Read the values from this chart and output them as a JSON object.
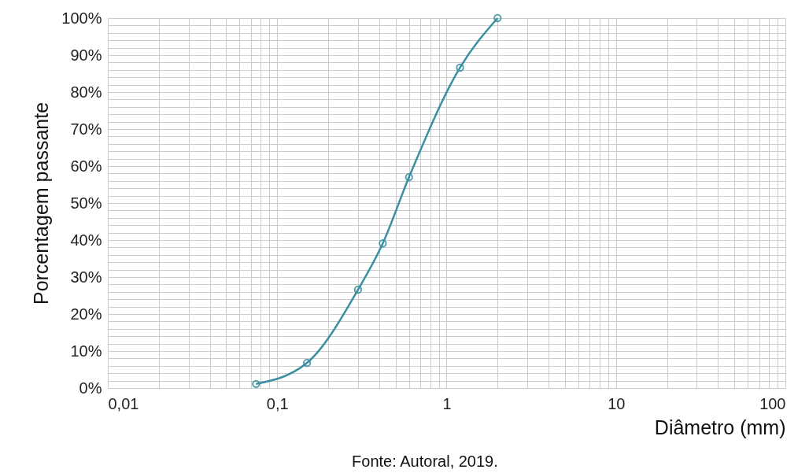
{
  "chart_data": {
    "type": "line",
    "xlabel": "Diâmetro (mm)",
    "ylabel": "Porcentagem passante",
    "x": [
      0.075,
      0.15,
      0.3,
      0.42,
      0.6,
      1.2,
      2.0
    ],
    "series": [
      {
        "color": "#3a8fa0",
        "values": [
          1.1,
          6.8,
          26.6,
          39.1,
          57,
          86.6,
          100
        ]
      }
    ],
    "log": "x",
    "xlim": [
      0.01,
      100
    ],
    "xticks": [
      {
        "value": 0.01,
        "label": "0,01"
      },
      {
        "value": 0.1,
        "label": "0,1"
      },
      1,
      10,
      100
    ],
    "ylim": [
      0,
      100
    ],
    "yticks": [
      {
        "value": 0,
        "label": "0%"
      },
      {
        "value": 10,
        "label": "10%"
      },
      {
        "value": 20,
        "label": "20%"
      },
      {
        "value": 30,
        "label": "30%"
      },
      {
        "value": 40,
        "label": "40%"
      },
      {
        "value": 50,
        "label": "50%"
      },
      {
        "value": 60,
        "label": "60%"
      },
      {
        "value": 70,
        "label": "70%"
      },
      {
        "value": 80,
        "label": "80%"
      },
      {
        "value": 90,
        "label": "90%"
      },
      {
        "value": 100,
        "label": "100%"
      }
    ],
    "grid": true,
    "marker": "circle",
    "line_style": "solid",
    "annotations": [
      "Fonte: Autoral, 2019."
    ]
  }
}
